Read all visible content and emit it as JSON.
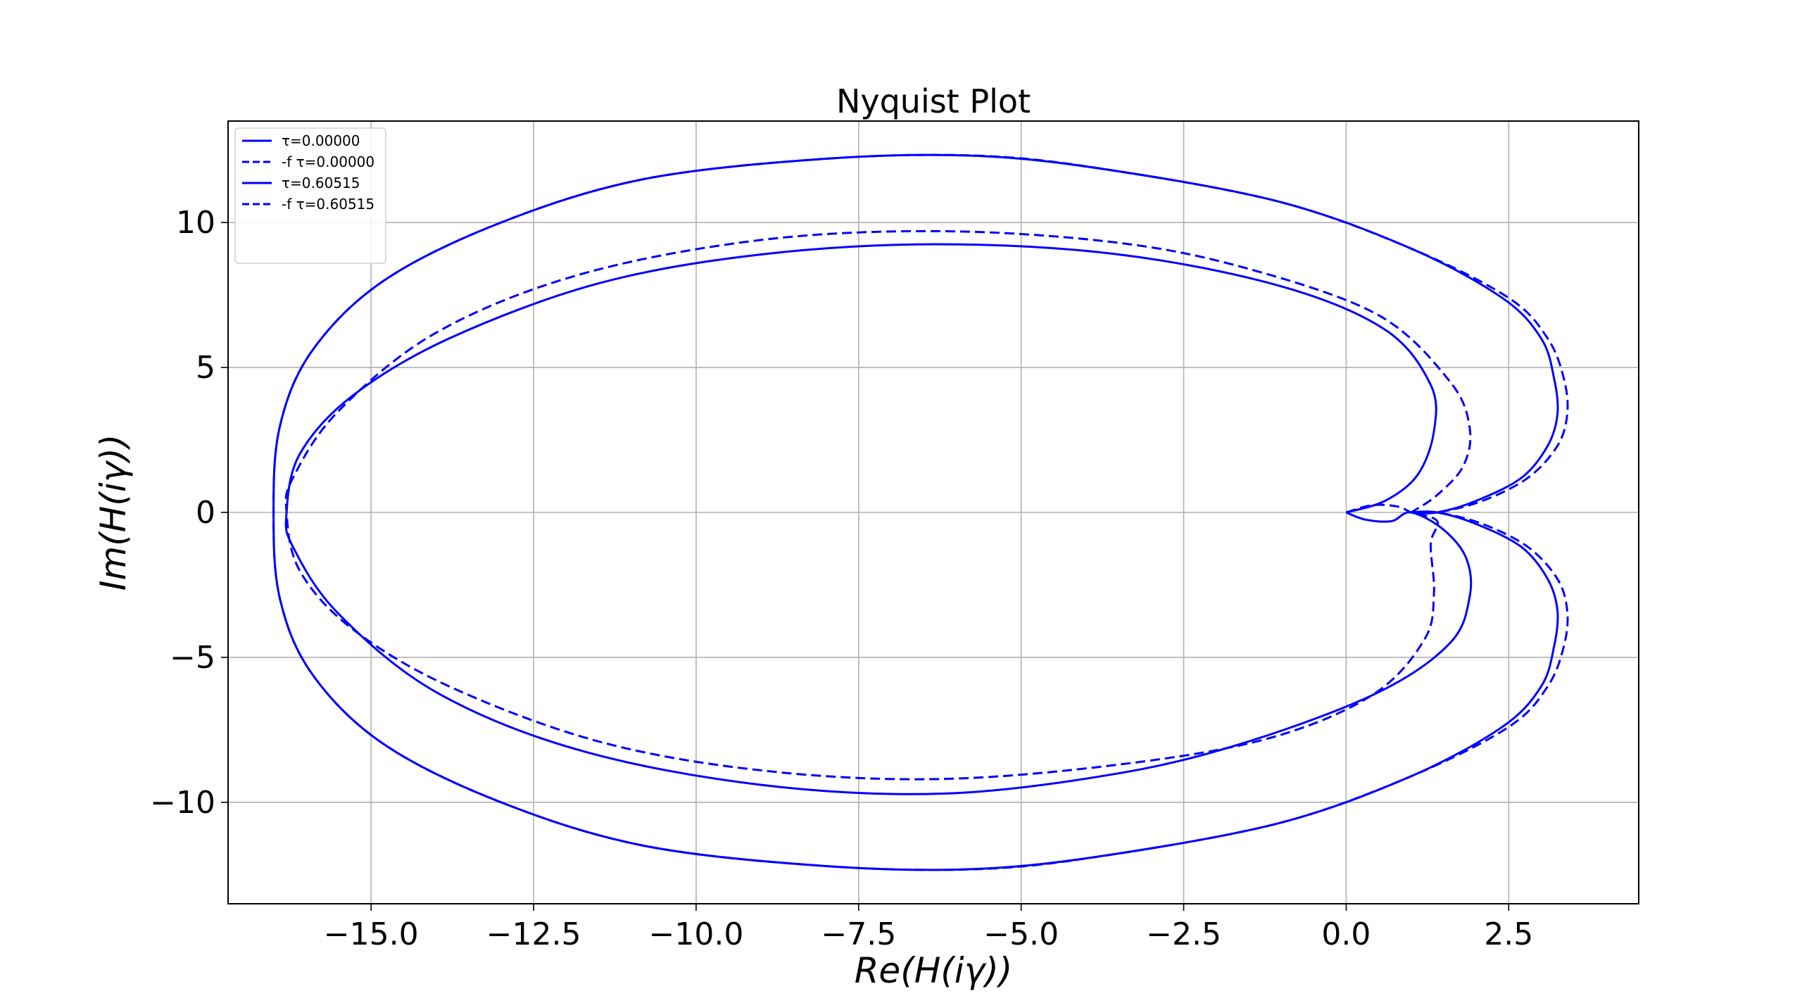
{
  "chart_data": {
    "type": "line",
    "title": "Nyquist Plot",
    "xlabel": "Re(H(iγ))",
    "ylabel": "Im(H(iγ))",
    "xlim": [
      -17.2,
      4.5
    ],
    "ylim": [
      -13.5,
      13.5
    ],
    "xticks": [
      -15.0,
      -12.5,
      -10.0,
      -7.5,
      -5.0,
      -2.5,
      0.0,
      2.5
    ],
    "xtick_labels": [
      "−15.0",
      "−12.5",
      "−10.0",
      "−7.5",
      "−5.0",
      "−2.5",
      "0.0",
      "2.5"
    ],
    "yticks": [
      10,
      5,
      0,
      -5,
      -10
    ],
    "ytick_labels": [
      "10",
      "5",
      "0",
      "−5",
      "−10"
    ],
    "grid": true,
    "legend_position": "top-left",
    "color": "#0000ff",
    "series": [
      {
        "name": "τ=0.00000",
        "style": "solid",
        "points": [
          [
            1.0,
            0.0
          ],
          [
            1.4,
            0.0
          ],
          [
            2.0,
            -0.4
          ],
          [
            2.7,
            -1.2
          ],
          [
            3.1,
            -2.3
          ],
          [
            3.25,
            -3.4
          ],
          [
            3.2,
            -4.6
          ],
          [
            3.0,
            -6.0
          ],
          [
            2.4,
            -7.4
          ],
          [
            1.0,
            -9.1
          ],
          [
            -1.0,
            -10.7
          ],
          [
            -3.6,
            -11.8
          ],
          [
            -5.7,
            -12.3
          ],
          [
            -8.0,
            -12.2
          ],
          [
            -10.8,
            -11.5
          ],
          [
            -13.0,
            -10.0
          ],
          [
            -14.8,
            -8.0
          ],
          [
            -15.9,
            -5.6
          ],
          [
            -16.4,
            -3.0
          ],
          [
            -16.5,
            0.0
          ],
          [
            -16.4,
            3.0
          ],
          [
            -15.9,
            5.6
          ],
          [
            -14.8,
            8.0
          ],
          [
            -13.0,
            10.0
          ],
          [
            -10.8,
            11.5
          ],
          [
            -8.0,
            12.2
          ],
          [
            -5.7,
            12.3
          ],
          [
            -3.6,
            11.8
          ],
          [
            -1.0,
            10.7
          ],
          [
            1.0,
            9.1
          ],
          [
            2.4,
            7.4
          ],
          [
            3.0,
            6.0
          ],
          [
            3.2,
            4.6
          ],
          [
            3.25,
            3.4
          ],
          [
            3.1,
            2.3
          ],
          [
            2.7,
            1.2
          ],
          [
            2.0,
            0.4
          ],
          [
            1.4,
            0.0
          ],
          [
            1.0,
            0.0
          ]
        ]
      },
      {
        "name": "-f τ=0.00000",
        "style": "dashed",
        "points": [
          [
            1.0,
            0.0
          ],
          [
            1.4,
            0.0
          ],
          [
            2.1,
            -0.4
          ],
          [
            2.8,
            -1.2
          ],
          [
            3.25,
            -2.3
          ],
          [
            3.4,
            -3.4
          ],
          [
            3.35,
            -4.6
          ],
          [
            3.1,
            -6.0
          ],
          [
            2.5,
            -7.4
          ],
          [
            1.0,
            -9.1
          ],
          [
            -1.0,
            -10.7
          ],
          [
            -3.6,
            -11.8
          ],
          [
            -5.6,
            -12.3
          ],
          [
            -8.0,
            -12.2
          ],
          [
            -10.8,
            -11.5
          ],
          [
            -13.0,
            -10.0
          ],
          [
            -14.8,
            -8.0
          ],
          [
            -15.9,
            -5.6
          ],
          [
            -16.4,
            -3.0
          ],
          [
            -16.5,
            0.0
          ],
          [
            -16.4,
            3.0
          ],
          [
            -15.9,
            5.6
          ],
          [
            -14.8,
            8.0
          ],
          [
            -13.0,
            10.0
          ],
          [
            -10.8,
            11.5
          ],
          [
            -8.0,
            12.2
          ],
          [
            -5.6,
            12.3
          ],
          [
            -3.6,
            11.8
          ],
          [
            -1.0,
            10.7
          ],
          [
            1.0,
            9.1
          ],
          [
            2.5,
            7.4
          ],
          [
            3.1,
            6.0
          ],
          [
            3.35,
            4.6
          ],
          [
            3.4,
            3.4
          ],
          [
            3.25,
            2.3
          ],
          [
            2.8,
            1.2
          ],
          [
            2.1,
            0.4
          ],
          [
            1.4,
            0.0
          ],
          [
            1.0,
            0.0
          ]
        ]
      },
      {
        "name": "τ=0.60515",
        "style": "solid",
        "points": [
          [
            0.0,
            0.0
          ],
          [
            0.3,
            -0.25
          ],
          [
            0.7,
            -0.3
          ],
          [
            1.0,
            0.0
          ],
          [
            1.5,
            -0.6
          ],
          [
            1.85,
            -1.6
          ],
          [
            1.9,
            -2.9
          ],
          [
            1.6,
            -4.5
          ],
          [
            0.5,
            -6.2
          ],
          [
            -1.5,
            -7.9
          ],
          [
            -3.5,
            -9.0
          ],
          [
            -6.2,
            -9.7
          ],
          [
            -9.0,
            -9.4
          ],
          [
            -11.8,
            -8.2
          ],
          [
            -14.0,
            -6.2
          ],
          [
            -15.5,
            -3.5
          ],
          [
            -16.2,
            -1.2
          ],
          [
            -16.3,
            0.0
          ],
          [
            -16.1,
            2.0
          ],
          [
            -15.3,
            4.0
          ],
          [
            -13.8,
            6.0
          ],
          [
            -11.5,
            7.9
          ],
          [
            -9.0,
            8.9
          ],
          [
            -6.3,
            9.25
          ],
          [
            -3.5,
            8.9
          ],
          [
            -1.0,
            7.8
          ],
          [
            0.6,
            6.3
          ],
          [
            1.3,
            4.4
          ],
          [
            1.35,
            2.8
          ],
          [
            1.1,
            1.3
          ],
          [
            0.6,
            0.4
          ],
          [
            0.0,
            0.0
          ]
        ]
      },
      {
        "name": "-f τ=0.60515",
        "style": "dashed",
        "points": [
          [
            0.0,
            0.0
          ],
          [
            0.4,
            0.25
          ],
          [
            0.8,
            0.2
          ],
          [
            1.0,
            0.0
          ],
          [
            1.4,
            -0.3
          ],
          [
            1.3,
            -1.1
          ],
          [
            1.35,
            -2.8
          ],
          [
            1.2,
            -4.4
          ],
          [
            0.4,
            -6.3
          ],
          [
            -1.2,
            -7.8
          ],
          [
            -3.5,
            -8.7
          ],
          [
            -6.3,
            -9.2
          ],
          [
            -9.0,
            -8.9
          ],
          [
            -11.5,
            -7.9
          ],
          [
            -13.8,
            -6.0
          ],
          [
            -15.3,
            -4.0
          ],
          [
            -16.1,
            -2.0
          ],
          [
            -16.3,
            0.0
          ],
          [
            -16.2,
            1.2
          ],
          [
            -15.5,
            3.5
          ],
          [
            -14.0,
            6.2
          ],
          [
            -11.8,
            8.2
          ],
          [
            -9.0,
            9.4
          ],
          [
            -6.2,
            9.7
          ],
          [
            -3.5,
            9.3
          ],
          [
            -1.5,
            8.4
          ],
          [
            0.5,
            6.8
          ],
          [
            1.6,
            4.5
          ],
          [
            1.9,
            2.9
          ],
          [
            1.8,
            1.6
          ],
          [
            1.4,
            0.6
          ],
          [
            1.0,
            0.0
          ]
        ]
      }
    ]
  }
}
